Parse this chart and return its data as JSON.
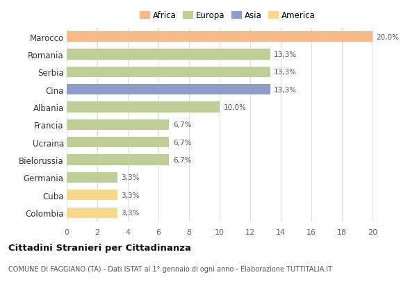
{
  "countries": [
    "Marocco",
    "Romania",
    "Serbia",
    "Cina",
    "Albania",
    "Francia",
    "Ucraina",
    "Bielorussia",
    "Germania",
    "Cuba",
    "Colombia"
  ],
  "values": [
    20.0,
    13.3,
    13.3,
    13.3,
    10.0,
    6.7,
    6.7,
    6.7,
    3.3,
    3.3,
    3.3
  ],
  "labels": [
    "20,0%",
    "13,3%",
    "13,3%",
    "13,3%",
    "10,0%",
    "6,7%",
    "6,7%",
    "6,7%",
    "3,3%",
    "3,3%",
    "3,3%"
  ],
  "colors": [
    "#f5b98a",
    "#bece96",
    "#bece96",
    "#8b9dc8",
    "#bece96",
    "#bece96",
    "#bece96",
    "#bece96",
    "#bece96",
    "#f8d98a",
    "#f8d98a"
  ],
  "legend_labels": [
    "Africa",
    "Europa",
    "Asia",
    "America"
  ],
  "legend_colors": [
    "#f5b98a",
    "#bece96",
    "#8b9dc8",
    "#f8d98a"
  ],
  "title": "Cittadini Stranieri per Cittadinanza",
  "subtitle": "COMUNE DI FAGGIANO (TA) - Dati ISTAT al 1° gennaio di ogni anno - Elaborazione TUTTITALIA.IT",
  "xlim": [
    0,
    21
  ],
  "xticks": [
    0,
    2,
    4,
    6,
    8,
    10,
    12,
    14,
    16,
    18,
    20
  ],
  "bg_color": "#ffffff",
  "grid_color": "#dddddd",
  "bar_height": 0.6
}
